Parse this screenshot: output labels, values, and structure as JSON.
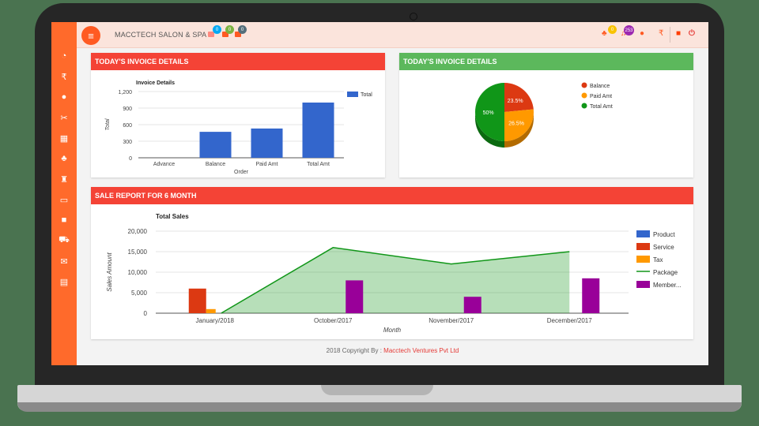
{
  "header": {
    "brand": "MACCTECH SALON & SPA",
    "menu_icon": "hamburger-icon",
    "notifications_left": [
      {
        "icon": "user-icon",
        "count": "0",
        "color": "#03a9f4"
      },
      {
        "icon": "user-icon",
        "count": "0",
        "color": "#7cb342"
      },
      {
        "icon": "user-icon",
        "count": "0",
        "color": "#546e7a"
      }
    ],
    "notifications_right": [
      {
        "icon": "users-icon",
        "count": "0",
        "color": "#f9c300"
      },
      {
        "icon": "bell-icon",
        "count": "253",
        "color": "#9c27b0"
      }
    ],
    "right_icons": [
      "chat-icon",
      "rupee-icon",
      "lock-icon",
      "power-icon"
    ]
  },
  "sidebar": {
    "items": [
      {
        "name": "dashboard",
        "icon": "dashboard-icon",
        "glyph": "◔"
      },
      {
        "name": "payments",
        "icon": "rupee-icon",
        "glyph": "₹"
      },
      {
        "name": "user",
        "icon": "user-icon",
        "glyph": "●"
      },
      {
        "name": "services",
        "icon": "scissors-icon",
        "glyph": "✂"
      },
      {
        "name": "calendar",
        "icon": "calendar-icon",
        "glyph": "▦"
      },
      {
        "name": "staff",
        "icon": "users-icon",
        "glyph": "♣"
      },
      {
        "name": "inventory",
        "icon": "bag-icon",
        "glyph": "♜"
      },
      {
        "name": "cards",
        "icon": "credit-card-icon",
        "glyph": "▭"
      },
      {
        "name": "briefcase",
        "icon": "briefcase-icon",
        "glyph": "■"
      },
      {
        "name": "cart",
        "icon": "cart-icon",
        "glyph": "⛟"
      },
      {
        "name": "mail",
        "icon": "envelope-icon",
        "glyph": "✉"
      },
      {
        "name": "reports",
        "icon": "chart-icon",
        "glyph": "▤"
      }
    ]
  },
  "panels": {
    "invoice_bar": {
      "title": "TODAY'S INVOICE DETAILS"
    },
    "invoice_pie": {
      "title": "TODAY'S INVOICE DETAILS"
    },
    "sales": {
      "title": "SALE REPORT FOR 6 MONTH"
    }
  },
  "footer": {
    "prefix": "2018 Copyright By : ",
    "company": "Macctech Ventures Pvt Ltd"
  },
  "chart_data": [
    {
      "type": "bar",
      "title": "Invoice Details",
      "xlabel": "Order",
      "ylabel": "Total",
      "categories": [
        "Advance",
        "Balance",
        "Paid Amt",
        "Total Amt"
      ],
      "values": [
        0,
        470,
        530,
        1000
      ],
      "yticks": [
        "0",
        "300",
        "600",
        "900",
        "1,200"
      ],
      "ylim": [
        0,
        1200
      ],
      "legend": [
        "Total"
      ],
      "color": "#3366cc"
    },
    {
      "type": "pie",
      "labels": [
        "Balance",
        "Paid Amt",
        "Total Amt"
      ],
      "values": [
        23.5,
        26.5,
        50
      ],
      "display": [
        "23.5%",
        "26.5%",
        "50%"
      ],
      "colors": [
        "#dc3912",
        "#ff9900",
        "#109618"
      ],
      "legend_position": "right"
    },
    {
      "type": "bar",
      "title": "Total Sales",
      "xlabel": "Month",
      "ylabel": "Sales Amount",
      "categories": [
        "January/2018",
        "October/2017",
        "November/2017",
        "December/2017"
      ],
      "yticks": [
        "0",
        "5,000",
        "10,000",
        "15,000",
        "20,000"
      ],
      "ylim": [
        0,
        20000
      ],
      "series": [
        {
          "name": "Product",
          "type": "bar",
          "color": "#3366cc",
          "values": [
            0,
            0,
            0,
            0
          ]
        },
        {
          "name": "Service",
          "type": "bar",
          "color": "#dc3912",
          "values": [
            6000,
            0,
            0,
            0
          ]
        },
        {
          "name": "Tax",
          "type": "bar",
          "color": "#ff9900",
          "values": [
            1000,
            0,
            0,
            0
          ]
        },
        {
          "name": "Package",
          "type": "area",
          "color": "#109618",
          "values": [
            0,
            16000,
            12000,
            15000
          ]
        },
        {
          "name": "Member...",
          "type": "bar",
          "color": "#990099",
          "values": [
            0,
            8000,
            4000,
            8500
          ]
        }
      ],
      "legend_position": "right"
    }
  ]
}
